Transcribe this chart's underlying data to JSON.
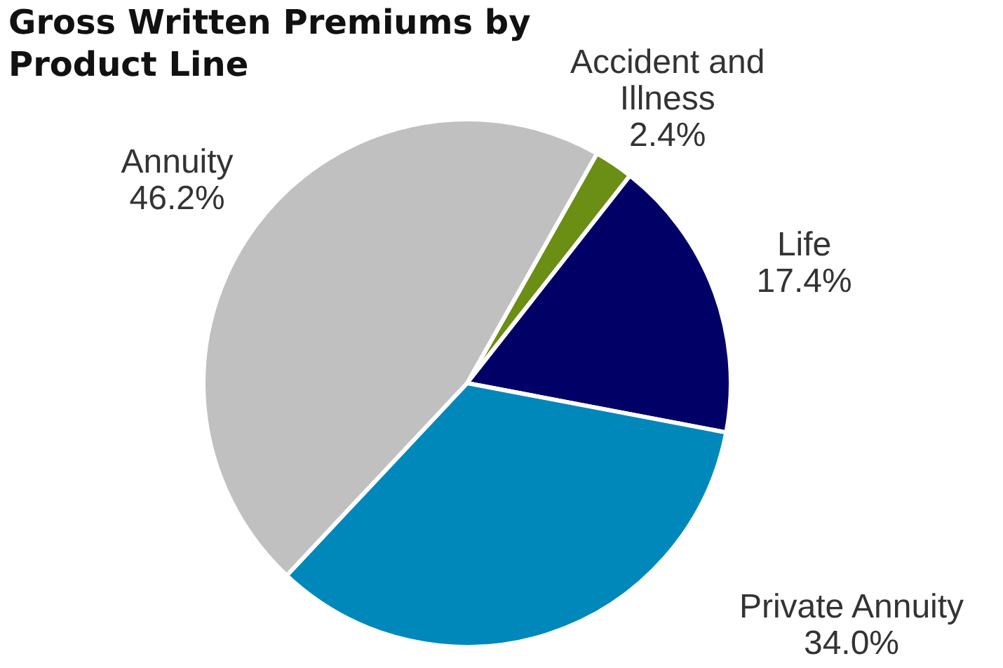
{
  "chart_data": {
    "type": "pie",
    "title": "Gross Written Premiums by Product Line",
    "categories": [
      "Accident and Illness",
      "Life",
      "Private Annuity",
      "Annuity"
    ],
    "values": [
      2.4,
      17.4,
      34.0,
      46.2
    ],
    "colors": [
      "#6b8e14",
      "#000066",
      "#0088bb",
      "#c0c0c0"
    ],
    "value_labels": [
      "2.4%",
      "17.4%",
      "34.0%",
      "46.2%"
    ]
  }
}
